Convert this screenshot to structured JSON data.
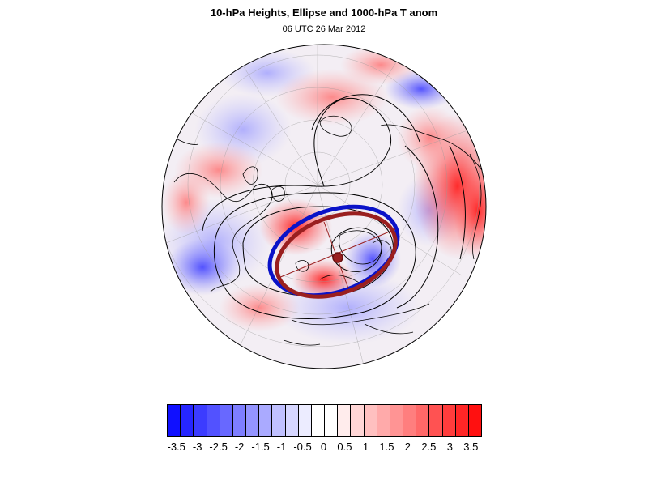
{
  "title": "10-hPa Heights, Ellipse and 1000-hPa T anom",
  "subtitle": "06 UTC 26 Mar 2012",
  "colors": {
    "ellipse_blue": "#0a12c8",
    "ellipse_red": "#9a1f1f",
    "contour": "#000000",
    "warm_max": "#ff0000",
    "cold_max": "#0000ff"
  },
  "colorbar": {
    "bin_colors": [
      "#1010ff",
      "#2626ff",
      "#3c3cff",
      "#5252ff",
      "#6868ff",
      "#7e7eff",
      "#9494ff",
      "#aaaaff",
      "#c0c0ff",
      "#d6d6ff",
      "#ececff",
      "#ffffff",
      "#ffffff",
      "#ffecec",
      "#ffd6d6",
      "#ffc0c0",
      "#ffaaaa",
      "#ff9494",
      "#ff7e7e",
      "#ff6868",
      "#ff5252",
      "#ff3c3c",
      "#ff2626",
      "#ff1010"
    ],
    "tick_labels": [
      "-3.5",
      "-3",
      "-2.5",
      "-2",
      "-1.5",
      "-1",
      "-0.5",
      "0",
      "0.5",
      "1",
      "1.5",
      "2",
      "2.5",
      "3",
      "3.5"
    ]
  }
}
